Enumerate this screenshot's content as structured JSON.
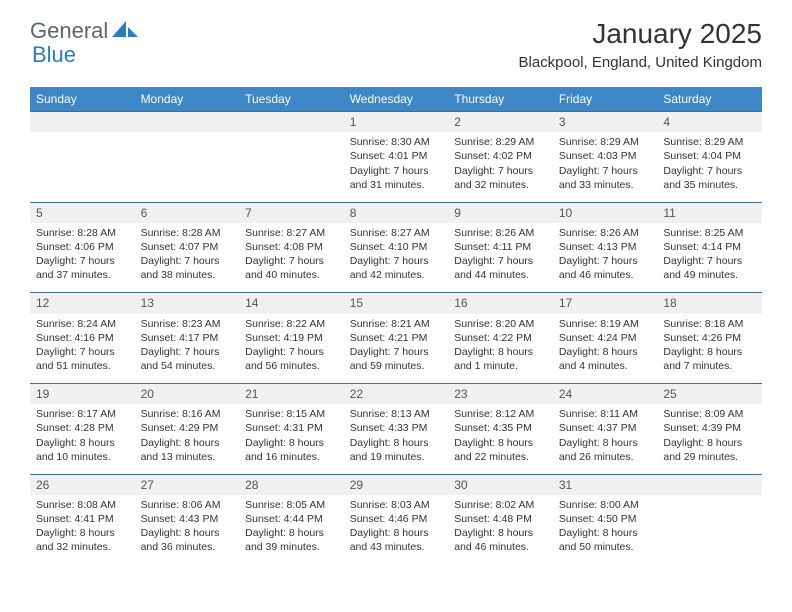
{
  "logo": {
    "part1": "General",
    "part2": "Blue"
  },
  "header": {
    "month_title": "January 2025",
    "location": "Blackpool, England, United Kingdom"
  },
  "colors": {
    "header_bg": "#3d87c7",
    "header_text": "#ffffff",
    "daynum_bg": "#f0f0f0",
    "row_border": "#3d6f9c",
    "logo_gray": "#5b6770",
    "logo_blue": "#2f7bbf"
  },
  "weekdays": [
    "Sunday",
    "Monday",
    "Tuesday",
    "Wednesday",
    "Thursday",
    "Friday",
    "Saturday"
  ],
  "weeks": [
    {
      "nums": [
        "",
        "",
        "",
        "1",
        "2",
        "3",
        "4"
      ],
      "cells": [
        "",
        "",
        "",
        "Sunrise: 8:30 AM\nSunset: 4:01 PM\nDaylight: 7 hours and 31 minutes.",
        "Sunrise: 8:29 AM\nSunset: 4:02 PM\nDaylight: 7 hours and 32 minutes.",
        "Sunrise: 8:29 AM\nSunset: 4:03 PM\nDaylight: 7 hours and 33 minutes.",
        "Sunrise: 8:29 AM\nSunset: 4:04 PM\nDaylight: 7 hours and 35 minutes."
      ]
    },
    {
      "nums": [
        "5",
        "6",
        "7",
        "8",
        "9",
        "10",
        "11"
      ],
      "cells": [
        "Sunrise: 8:28 AM\nSunset: 4:06 PM\nDaylight: 7 hours and 37 minutes.",
        "Sunrise: 8:28 AM\nSunset: 4:07 PM\nDaylight: 7 hours and 38 minutes.",
        "Sunrise: 8:27 AM\nSunset: 4:08 PM\nDaylight: 7 hours and 40 minutes.",
        "Sunrise: 8:27 AM\nSunset: 4:10 PM\nDaylight: 7 hours and 42 minutes.",
        "Sunrise: 8:26 AM\nSunset: 4:11 PM\nDaylight: 7 hours and 44 minutes.",
        "Sunrise: 8:26 AM\nSunset: 4:13 PM\nDaylight: 7 hours and 46 minutes.",
        "Sunrise: 8:25 AM\nSunset: 4:14 PM\nDaylight: 7 hours and 49 minutes."
      ]
    },
    {
      "nums": [
        "12",
        "13",
        "14",
        "15",
        "16",
        "17",
        "18"
      ],
      "cells": [
        "Sunrise: 8:24 AM\nSunset: 4:16 PM\nDaylight: 7 hours and 51 minutes.",
        "Sunrise: 8:23 AM\nSunset: 4:17 PM\nDaylight: 7 hours and 54 minutes.",
        "Sunrise: 8:22 AM\nSunset: 4:19 PM\nDaylight: 7 hours and 56 minutes.",
        "Sunrise: 8:21 AM\nSunset: 4:21 PM\nDaylight: 7 hours and 59 minutes.",
        "Sunrise: 8:20 AM\nSunset: 4:22 PM\nDaylight: 8 hours and 1 minute.",
        "Sunrise: 8:19 AM\nSunset: 4:24 PM\nDaylight: 8 hours and 4 minutes.",
        "Sunrise: 8:18 AM\nSunset: 4:26 PM\nDaylight: 8 hours and 7 minutes."
      ]
    },
    {
      "nums": [
        "19",
        "20",
        "21",
        "22",
        "23",
        "24",
        "25"
      ],
      "cells": [
        "Sunrise: 8:17 AM\nSunset: 4:28 PM\nDaylight: 8 hours and 10 minutes.",
        "Sunrise: 8:16 AM\nSunset: 4:29 PM\nDaylight: 8 hours and 13 minutes.",
        "Sunrise: 8:15 AM\nSunset: 4:31 PM\nDaylight: 8 hours and 16 minutes.",
        "Sunrise: 8:13 AM\nSunset: 4:33 PM\nDaylight: 8 hours and 19 minutes.",
        "Sunrise: 8:12 AM\nSunset: 4:35 PM\nDaylight: 8 hours and 22 minutes.",
        "Sunrise: 8:11 AM\nSunset: 4:37 PM\nDaylight: 8 hours and 26 minutes.",
        "Sunrise: 8:09 AM\nSunset: 4:39 PM\nDaylight: 8 hours and 29 minutes."
      ]
    },
    {
      "nums": [
        "26",
        "27",
        "28",
        "29",
        "30",
        "31",
        ""
      ],
      "cells": [
        "Sunrise: 8:08 AM\nSunset: 4:41 PM\nDaylight: 8 hours and 32 minutes.",
        "Sunrise: 8:06 AM\nSunset: 4:43 PM\nDaylight: 8 hours and 36 minutes.",
        "Sunrise: 8:05 AM\nSunset: 4:44 PM\nDaylight: 8 hours and 39 minutes.",
        "Sunrise: 8:03 AM\nSunset: 4:46 PM\nDaylight: 8 hours and 43 minutes.",
        "Sunrise: 8:02 AM\nSunset: 4:48 PM\nDaylight: 8 hours and 46 minutes.",
        "Sunrise: 8:00 AM\nSunset: 4:50 PM\nDaylight: 8 hours and 50 minutes.",
        ""
      ]
    }
  ]
}
